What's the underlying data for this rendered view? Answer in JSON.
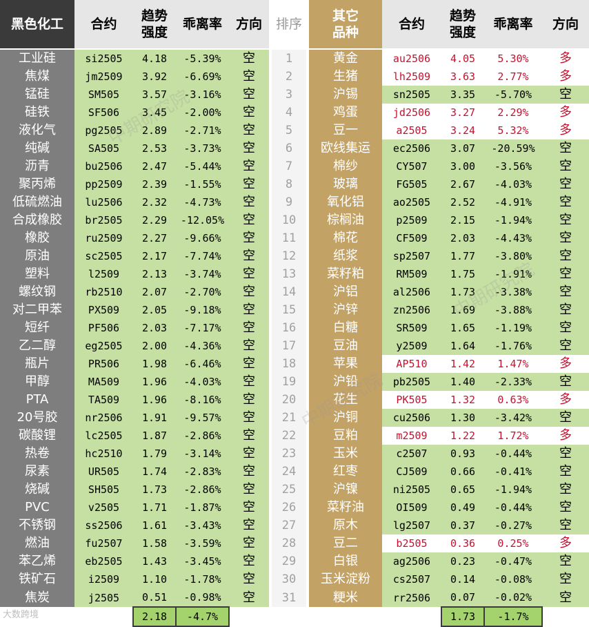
{
  "header": {
    "left_title": "黑色化工",
    "contract": "合约",
    "trend": "趋势\n强度",
    "dev": "乖离率",
    "direction": "方向",
    "rank": "排序",
    "right_title": "其它\n品种"
  },
  "rows": [
    {
      "rank": "1",
      "l": [
        "工业硅",
        "si2505",
        "4.18",
        "-5.39%",
        "空",
        false
      ],
      "r": [
        "黄金",
        "au2506",
        "4.05",
        "5.30%",
        "多",
        true
      ]
    },
    {
      "rank": "2",
      "l": [
        "焦煤",
        "jm2509",
        "3.92",
        "-6.69%",
        "空",
        false
      ],
      "r": [
        "生猪",
        "lh2509",
        "3.63",
        "2.77%",
        "多",
        true
      ]
    },
    {
      "rank": "3",
      "l": [
        "锰硅",
        "SM505",
        "3.57",
        "-3.16%",
        "空",
        false
      ],
      "r": [
        "沪锡",
        "sn2505",
        "3.35",
        "-5.70%",
        "空",
        false
      ]
    },
    {
      "rank": "4",
      "l": [
        "硅铁",
        "SF506",
        "3.45",
        "-2.00%",
        "空",
        false
      ],
      "r": [
        "鸡蛋",
        "jd2506",
        "3.27",
        "2.29%",
        "多",
        true
      ]
    },
    {
      "rank": "5",
      "l": [
        "液化气",
        "pg2505",
        "2.89",
        "-2.71%",
        "空",
        false
      ],
      "r": [
        "豆一",
        "a2505",
        "3.24",
        "5.32%",
        "多",
        true
      ]
    },
    {
      "rank": "6",
      "l": [
        "纯碱",
        "SA505",
        "2.53",
        "-3.73%",
        "空",
        false
      ],
      "r": [
        "欧线集运",
        "ec2506",
        "3.07",
        "-20.59%",
        "空",
        false
      ]
    },
    {
      "rank": "7",
      "l": [
        "沥青",
        "bu2506",
        "2.47",
        "-5.44%",
        "空",
        false
      ],
      "r": [
        "棉纱",
        "CY507",
        "3.00",
        "-3.56%",
        "空",
        false
      ]
    },
    {
      "rank": "8",
      "l": [
        "聚丙烯",
        "pp2509",
        "2.39",
        "-1.55%",
        "空",
        false
      ],
      "r": [
        "玻璃",
        "FG505",
        "2.67",
        "-4.03%",
        "空",
        false
      ]
    },
    {
      "rank": "9",
      "l": [
        "低硫燃油",
        "lu2506",
        "2.32",
        "-4.73%",
        "空",
        false
      ],
      "r": [
        "氧化铝",
        "ao2505",
        "2.52",
        "-4.91%",
        "空",
        false
      ]
    },
    {
      "rank": "10",
      "l": [
        "合成橡胶",
        "br2505",
        "2.29",
        "-12.05%",
        "空",
        false
      ],
      "r": [
        "棕榈油",
        "p2509",
        "2.15",
        "-1.94%",
        "空",
        false
      ]
    },
    {
      "rank": "11",
      "l": [
        "橡胶",
        "ru2509",
        "2.27",
        "-9.66%",
        "空",
        false
      ],
      "r": [
        "棉花",
        "CF509",
        "2.03",
        "-4.43%",
        "空",
        false
      ]
    },
    {
      "rank": "12",
      "l": [
        "原油",
        "sc2505",
        "2.17",
        "-7.74%",
        "空",
        false
      ],
      "r": [
        "纸浆",
        "sp2507",
        "1.77",
        "-3.80%",
        "空",
        false
      ]
    },
    {
      "rank": "13",
      "l": [
        "塑料",
        "l2509",
        "2.13",
        "-3.74%",
        "空",
        false
      ],
      "r": [
        "菜籽粕",
        "RM509",
        "1.75",
        "-1.91%",
        "空",
        false
      ]
    },
    {
      "rank": "14",
      "l": [
        "螺纹钢",
        "rb2510",
        "2.07",
        "-2.70%",
        "空",
        false
      ],
      "r": [
        "沪铝",
        "al2506",
        "1.73",
        "-3.38%",
        "空",
        false
      ]
    },
    {
      "rank": "15",
      "l": [
        "对二甲苯",
        "PX509",
        "2.05",
        "-9.18%",
        "空",
        false
      ],
      "r": [
        "沪锌",
        "zn2506",
        "1.69",
        "-3.88%",
        "空",
        false
      ]
    },
    {
      "rank": "16",
      "l": [
        "短纤",
        "PF506",
        "2.03",
        "-7.17%",
        "空",
        false
      ],
      "r": [
        "白糖",
        "SR509",
        "1.65",
        "-1.19%",
        "空",
        false
      ]
    },
    {
      "rank": "17",
      "l": [
        "乙二醇",
        "eg2505",
        "2.00",
        "-4.36%",
        "空",
        false
      ],
      "r": [
        "豆油",
        "y2509",
        "1.64",
        "-1.76%",
        "空",
        false
      ]
    },
    {
      "rank": "18",
      "l": [
        "瓶片",
        "PR506",
        "1.98",
        "-6.46%",
        "空",
        false
      ],
      "r": [
        "苹果",
        "AP510",
        "1.42",
        "1.47%",
        "多",
        true
      ]
    },
    {
      "rank": "19",
      "l": [
        "甲醇",
        "MA509",
        "1.96",
        "-4.03%",
        "空",
        false
      ],
      "r": [
        "沪铅",
        "pb2505",
        "1.40",
        "-2.33%",
        "空",
        false
      ]
    },
    {
      "rank": "20",
      "l": [
        "PTA",
        "TA509",
        "1.96",
        "-8.16%",
        "空",
        false
      ],
      "r": [
        "花生",
        "PK505",
        "1.32",
        "0.63%",
        "多",
        true
      ]
    },
    {
      "rank": "21",
      "l": [
        "20号胶",
        "nr2506",
        "1.91",
        "-9.57%",
        "空",
        false
      ],
      "r": [
        "沪铜",
        "cu2506",
        "1.30",
        "-3.42%",
        "空",
        false
      ]
    },
    {
      "rank": "22",
      "l": [
        "碳酸锂",
        "lc2505",
        "1.87",
        "-2.86%",
        "空",
        false
      ],
      "r": [
        "豆粕",
        "m2509",
        "1.22",
        "1.72%",
        "多",
        true
      ]
    },
    {
      "rank": "23",
      "l": [
        "热卷",
        "hc2510",
        "1.79",
        "-3.14%",
        "空",
        false
      ],
      "r": [
        "玉米",
        "c2507",
        "0.93",
        "-0.44%",
        "空",
        false
      ]
    },
    {
      "rank": "24",
      "l": [
        "尿素",
        "UR505",
        "1.74",
        "-2.83%",
        "空",
        false
      ],
      "r": [
        "红枣",
        "CJ509",
        "0.66",
        "-0.41%",
        "空",
        false
      ]
    },
    {
      "rank": "25",
      "l": [
        "烧碱",
        "SH505",
        "1.73",
        "-2.86%",
        "空",
        false
      ],
      "r": [
        "沪镍",
        "ni2505",
        "0.65",
        "-1.94%",
        "空",
        false
      ]
    },
    {
      "rank": "26",
      "l": [
        "PVC",
        "v2505",
        "1.71",
        "-1.87%",
        "空",
        false
      ],
      "r": [
        "菜籽油",
        "OI509",
        "0.49",
        "-0.44%",
        "空",
        false
      ]
    },
    {
      "rank": "27",
      "l": [
        "不锈钢",
        "ss2506",
        "1.61",
        "-3.43%",
        "空",
        false
      ],
      "r": [
        "原木",
        "lg2507",
        "0.37",
        "-0.27%",
        "空",
        false
      ]
    },
    {
      "rank": "28",
      "l": [
        "燃油",
        "fu2507",
        "1.58",
        "-3.59%",
        "空",
        false
      ],
      "r": [
        "豆二",
        "b2505",
        "0.36",
        "0.25%",
        "多",
        true
      ]
    },
    {
      "rank": "29",
      "l": [
        "苯乙烯",
        "eb2505",
        "1.43",
        "-3.45%",
        "空",
        false
      ],
      "r": [
        "白银",
        "ag2506",
        "0.23",
        "-0.47%",
        "空",
        false
      ]
    },
    {
      "rank": "30",
      "l": [
        "铁矿石",
        "i2509",
        "1.10",
        "-1.78%",
        "空",
        false
      ],
      "r": [
        "玉米淀粉",
        "cs2507",
        "0.14",
        "-0.08%",
        "空",
        false
      ]
    },
    {
      "rank": "31",
      "l": [
        "焦炭",
        "j2505",
        "0.51",
        "-0.98%",
        "空",
        false
      ],
      "r": [
        "粳米",
        "rr2506",
        "0.07",
        "-0.02%",
        "空",
        false
      ]
    }
  ],
  "footer": {
    "left_avg_trend": "2.18",
    "left_avg_dev": "-4.7%",
    "right_avg_trend": "1.73",
    "right_avg_dev": "-1.7%"
  },
  "watermarks": [
    "中期研究院",
    "中期研究院",
    "中期研究院"
  ],
  "logo_text": "大数跨境",
  "colors": {
    "header_black": "#3a3a3a",
    "header_gold": "#c3a266",
    "name_gray": "#7e7e7e",
    "short_green": "#c6dfa3",
    "long_red": "#c8102e",
    "avg_green": "#a4d36e"
  }
}
